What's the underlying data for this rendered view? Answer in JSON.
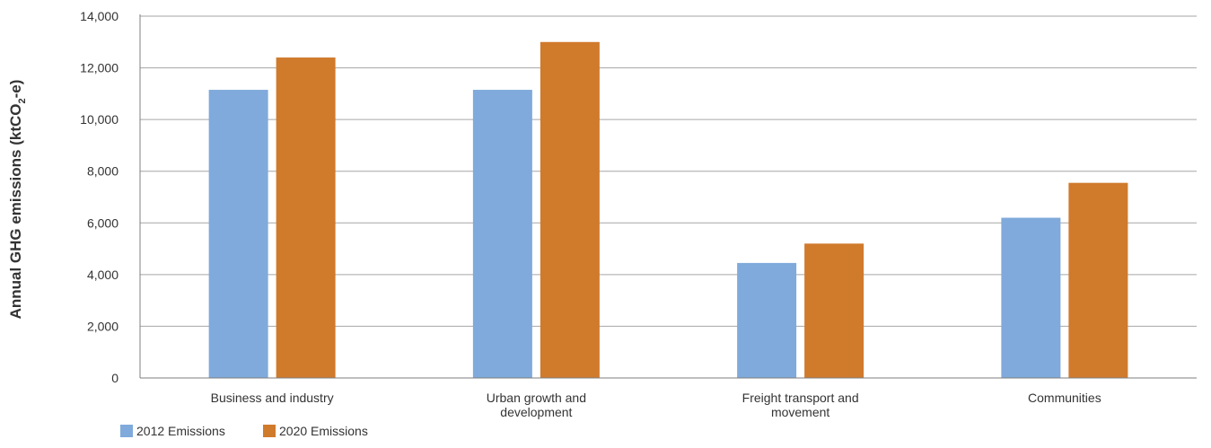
{
  "chart_data": {
    "type": "bar",
    "title": "",
    "xlabel": "",
    "ylabel_parts": {
      "main": "Annual GHG emissions (ktCO",
      "sub": "2",
      "tail": "-e)"
    },
    "ylim": [
      0,
      14000
    ],
    "yticks": [
      0,
      2000,
      4000,
      6000,
      8000,
      10000,
      12000,
      14000
    ],
    "ytick_labels": [
      "0",
      "2,000",
      "4,000",
      "6,000",
      "8,000",
      "10,000",
      "12,000",
      "14,000"
    ],
    "grid": true,
    "legend_position": "bottom-left",
    "categories": [
      [
        "Business and industry"
      ],
      [
        "Urban growth and",
        "development"
      ],
      [
        "Freight transport and",
        "movement"
      ],
      [
        "Communities"
      ]
    ],
    "series": [
      {
        "name": "2012 Emissions",
        "color": "#7faadb",
        "values": [
          11150,
          11150,
          4450,
          6200
        ]
      },
      {
        "name": "2020 Emissions",
        "color": "#d07a2c",
        "values": [
          12400,
          13000,
          5200,
          7550
        ]
      }
    ]
  }
}
